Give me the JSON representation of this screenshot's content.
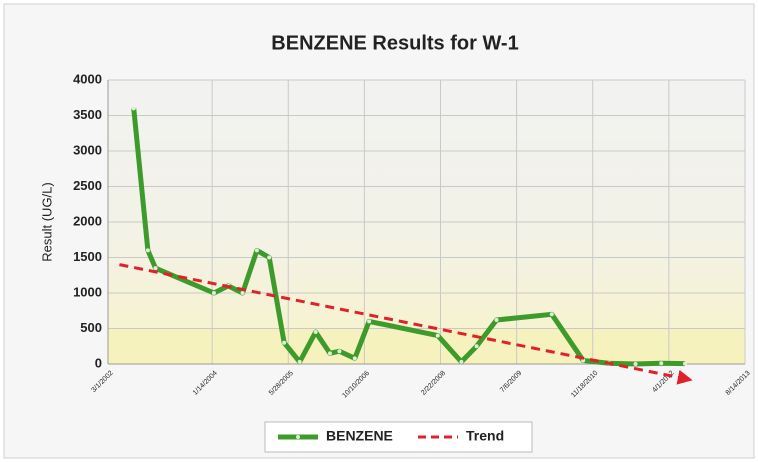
{
  "chart_data": {
    "type": "line",
    "title": "BENZENE Results for W-1",
    "y_label": "Result (UG/L)",
    "xlim": [
      "3/1/2002",
      "8/14/2013"
    ],
    "xticks": [
      "3/1/2002",
      "1/14/2004",
      "5/28/2005",
      "10/10/2006",
      "2/22/2008",
      "7/6/2009",
      "11/18/2010",
      "4/1/2012",
      "8/14/2013"
    ],
    "ylim": [
      0,
      4000
    ],
    "yticks": [
      0,
      500,
      1000,
      1500,
      2000,
      2500,
      3000,
      3500,
      4000
    ],
    "grid": true,
    "legend": "bottom",
    "series": [
      {
        "name": "BENZENE",
        "color": "#3d9b2c",
        "style": "solid",
        "x": [
          "8/17/2002",
          "11/18/2002",
          "1/7/2003",
          "1/26/2004",
          "4/29/2004",
          "8/1/2004",
          "11/3/2004",
          "1/23/2005",
          "5/1/2005",
          "8/11/2005",
          "11/24/2005",
          "2/26/2006",
          "4/29/2006",
          "8/8/2006",
          "11/10/2006",
          "2/4/2008",
          "7/8/2008",
          "10/16/2008",
          "2/24/2009",
          "2/22/2010",
          "9/16/2010",
          "3/4/2011",
          "8/26/2011",
          "2/11/2012",
          "7/16/2012"
        ],
        "values": [
          3600,
          1600,
          1350,
          1000,
          1100,
          1000,
          1600,
          1500,
          300,
          30,
          450,
          150,
          180,
          80,
          600,
          400,
          30,
          250,
          620,
          700,
          50,
          10,
          0,
          10,
          5
        ]
      },
      {
        "name": "Trend",
        "color": "#e0202a",
        "style": "dashed",
        "x": [
          "5/15/2002",
          "8/16/2012"
        ],
        "values": [
          1400,
          -220
        ]
      }
    ]
  }
}
